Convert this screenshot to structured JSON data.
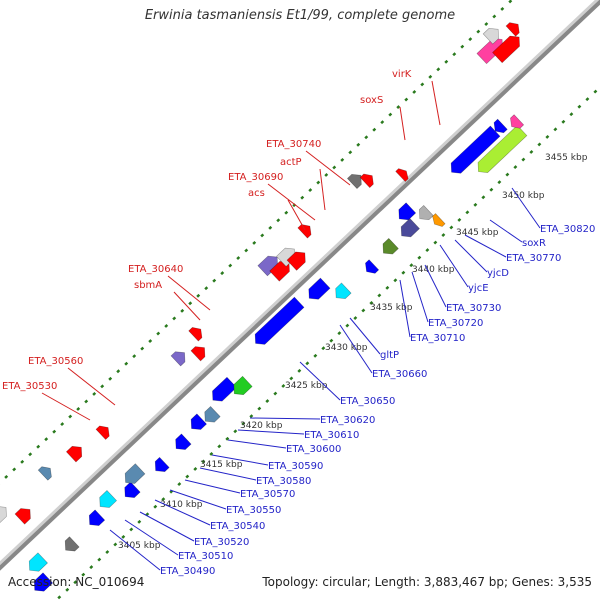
{
  "title": "Erwinia tasmaniensis Et1/99, complete genome",
  "footer": {
    "accession": "Accession: NC_010694",
    "topology": "Topology: circular; Length: 3,883,467 bp; Genes: 3,535"
  },
  "colors": {
    "backbone": "#888888",
    "tick": "#2a7a1e",
    "forward_label": "#d42020",
    "reverse_label": "#2424c8",
    "kbp_label": "#333333"
  },
  "kbp_labels": [
    "3405 kbp",
    "3410 kbp",
    "3415 kbp",
    "3420 kbp",
    "3425 kbp",
    "3430 kbp",
    "3435 kbp",
    "3440 kbp",
    "3445 kbp",
    "3450 kbp",
    "3455 kbp"
  ],
  "forward_labels": [
    "virK",
    "soxS",
    "ETA_30740",
    "actP",
    "ETA_30690",
    "acs",
    "ETA_30640",
    "sbmA",
    "ETA_30560",
    "ETA_30530"
  ],
  "reverse_labels": [
    "ETA_30820",
    "soxR",
    "ETA_30770",
    "yjcD",
    "yjcE",
    "ETA_30730",
    "ETA_30720",
    "ETA_30710",
    "gltP",
    "ETA_30660",
    "ETA_30650",
    "ETA_30620",
    "ETA_30610",
    "ETA_30600",
    "ETA_30590",
    "ETA_30580",
    "ETA_30570",
    "ETA_30550",
    "ETA_30540",
    "ETA_30520",
    "ETA_30510",
    "ETA_30490"
  ]
}
